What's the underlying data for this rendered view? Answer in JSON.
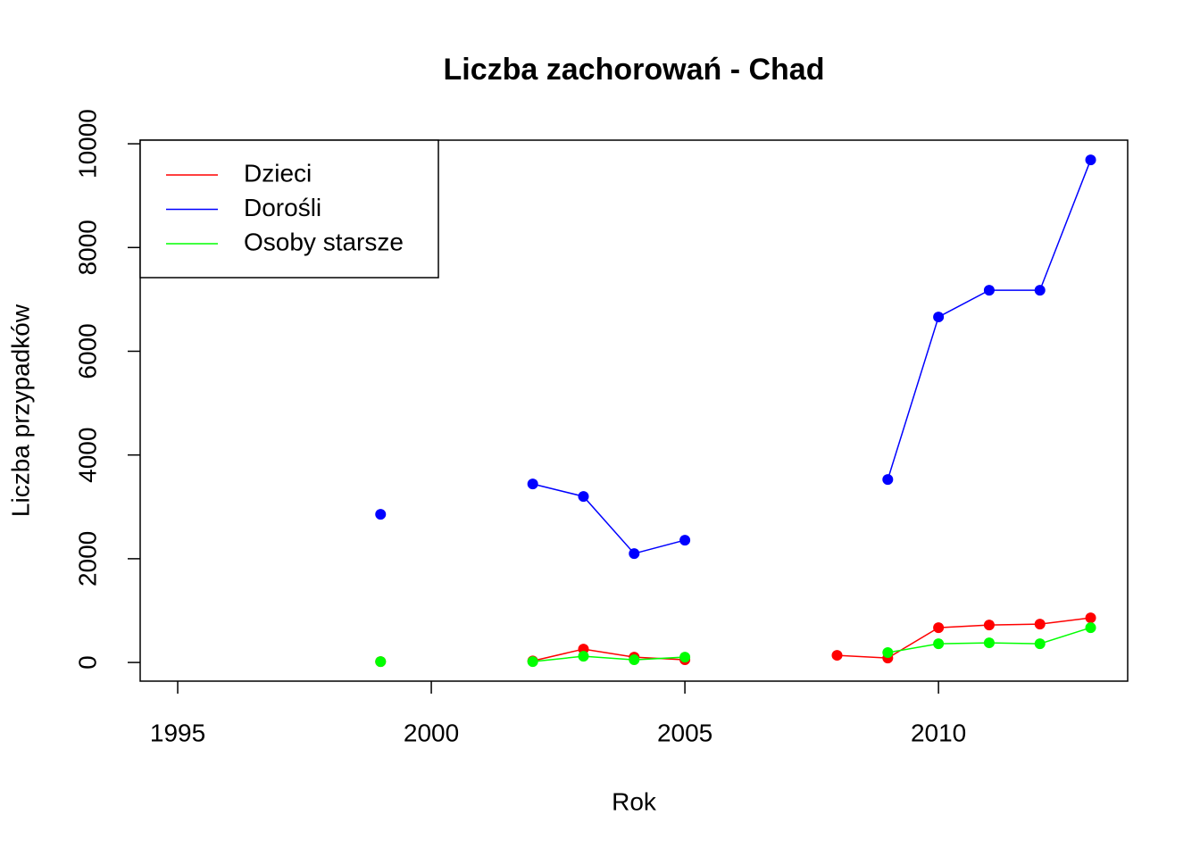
{
  "chart_data": {
    "type": "line",
    "title": "Liczba zachorowań -  Chad",
    "x_label": "Rok",
    "y_label": "Liczba przypadków",
    "x": [
      1999,
      2000,
      2001,
      2002,
      2003,
      2004,
      2005,
      2006,
      2007,
      2008,
      2009,
      2010,
      2011,
      2012,
      2013
    ],
    "series": [
      {
        "name": "Dzieci",
        "color": "#ff0000",
        "values": [
          17,
          null,
          null,
          30,
          258,
          103,
          52,
          null,
          null,
          138,
          86,
          671,
          723,
          740,
          860
        ]
      },
      {
        "name": "Dorośli",
        "color": "#0000ff",
        "values": [
          2857,
          null,
          null,
          3442,
          3201,
          2100,
          2358,
          null,
          null,
          null,
          3528,
          6661,
          7177,
          7177,
          9690
        ]
      },
      {
        "name": "Osoby starsze",
        "color": "#00ff00",
        "values": [
          17,
          null,
          null,
          17,
          120,
          52,
          103,
          null,
          null,
          null,
          190,
          361,
          379,
          361,
          671
        ]
      }
    ],
    "xlim": [
      1994.26,
      2013.73
    ],
    "xticks": [
      1995,
      2000,
      2005,
      2010
    ],
    "ylim": [
      -360,
      10070
    ],
    "yticks": [
      0,
      2000,
      4000,
      6000,
      8000,
      10000
    ],
    "legend": "top-left"
  }
}
